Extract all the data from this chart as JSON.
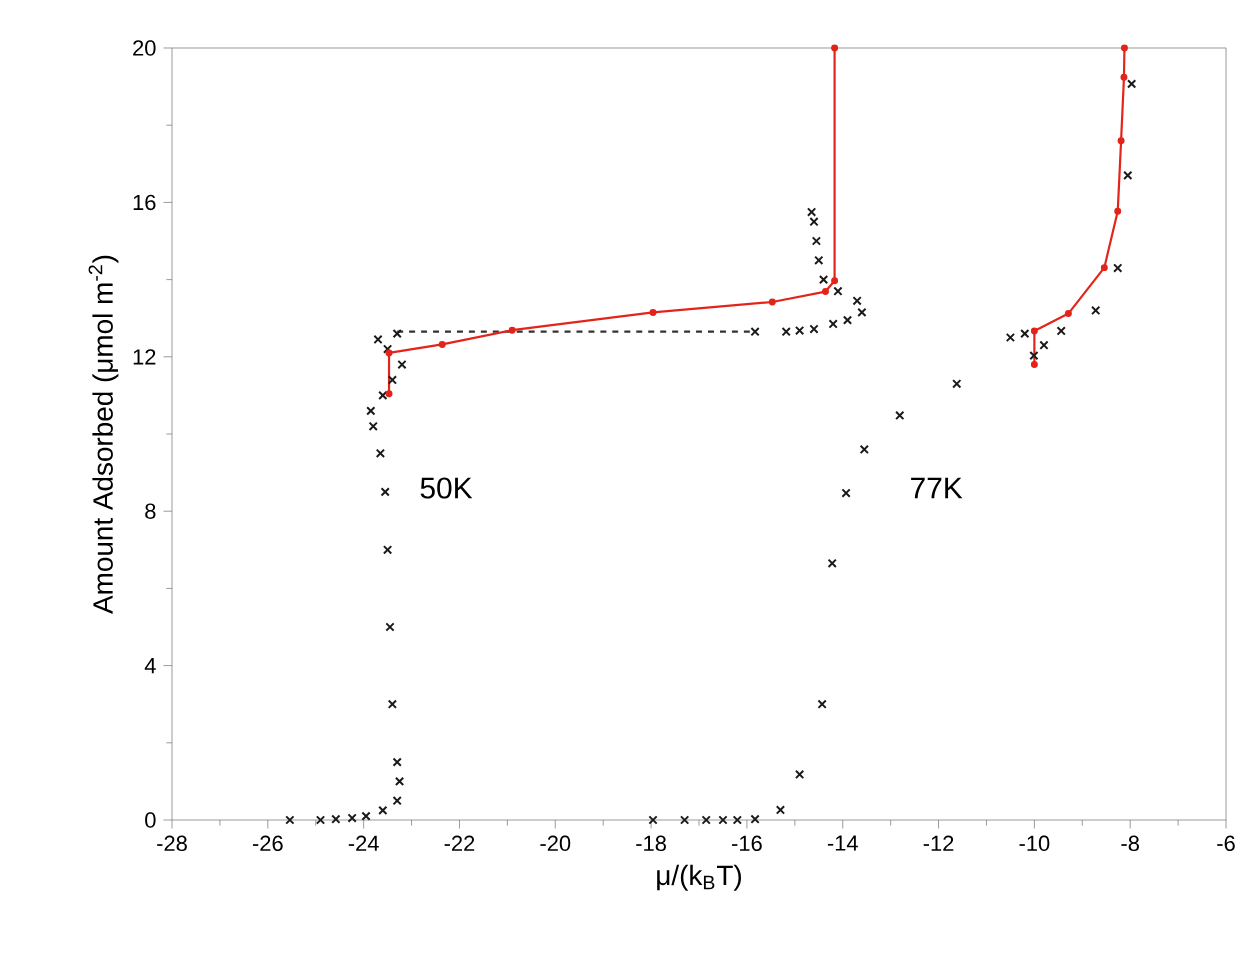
{
  "chart_data": {
    "type": "scatter",
    "xlabel": "μ/(k$_{B}$T)",
    "ylabel": "Amount Adsorbed (μmol m$^{-2}$)",
    "xlim": [
      -28,
      -6
    ],
    "ylim": [
      0,
      20
    ],
    "xticks": [
      -28,
      -26,
      -24,
      -22,
      -20,
      -18,
      -16,
      -14,
      -12,
      -10,
      -8,
      -6
    ],
    "yticks": [
      0,
      4,
      8,
      12,
      16,
      20
    ],
    "annotations": [
      "50K",
      "77K"
    ],
    "series": [
      {
        "marker": "cross",
        "color": "#1a1a1a",
        "x": [
          -25.54,
          -24.9,
          -24.58,
          -24.24,
          -23.95,
          -23.6,
          -23.3,
          -23.25,
          -23.3,
          -23.4,
          -23.45,
          -23.5,
          -23.55,
          -23.65,
          -23.8,
          -23.85,
          -23.6,
          -23.4,
          -23.2,
          -23.5,
          -23.7,
          -23.3,
          -15.83,
          -15.18,
          -14.9,
          -14.6,
          -14.2,
          -13.9,
          -13.6,
          -13.7,
          -14.1,
          -14.4,
          -14.5,
          -14.55,
          -14.6,
          -14.65
        ],
        "values": [
          0,
          0,
          0.02,
          0.05,
          0.1,
          0.25,
          0.5,
          1.0,
          1.5,
          3,
          5,
          7,
          8.5,
          9.5,
          10.2,
          10.6,
          11.0,
          11.4,
          11.8,
          12.2,
          12.45,
          12.6,
          12.65,
          12.65,
          12.68,
          12.72,
          12.85,
          12.95,
          13.15,
          13.45,
          13.7,
          14.0,
          14.5,
          15.0,
          15.5,
          15.75
        ]
      },
      {
        "type": "line",
        "line_style": "dashed",
        "marker": "none",
        "color": "#333333",
        "x": [
          -23.3,
          -15.83
        ],
        "values": [
          12.65,
          12.65
        ]
      },
      {
        "type": "line",
        "line_style": "solid",
        "marker": "circle",
        "color": "#e3241b",
        "x": [
          -23.47,
          -23.47,
          -22.36,
          -20.9,
          -17.96,
          -15.47,
          -14.36,
          -14.17,
          -14.17
        ],
        "values": [
          11.04,
          12.1,
          12.32,
          12.69,
          13.15,
          13.42,
          13.69,
          13.97,
          20
        ]
      },
      {
        "marker": "cross",
        "color": "#1a1a1a",
        "x": [
          -17.96,
          -17.3,
          -16.85,
          -16.5,
          -16.2,
          -15.83,
          -15.3,
          -14.9,
          -14.43,
          -14.22,
          -13.93,
          -13.55,
          -12.81,
          -11.62,
          -10.01,
          -10.5,
          -10.2,
          -9.8,
          -9.44,
          -8.72,
          -8.26,
          -8.05,
          -7.97
        ],
        "values": [
          0,
          0,
          0,
          0,
          0,
          0.02,
          0.26,
          1.18,
          3.0,
          6.65,
          8.47,
          9.6,
          10.48,
          11.3,
          12.03,
          12.5,
          12.6,
          12.3,
          12.67,
          13.2,
          14.3,
          16.7,
          19.07
        ]
      },
      {
        "type": "line",
        "line_style": "solid",
        "marker": "circle",
        "color": "#e3241b",
        "x": [
          -10.0,
          -10.0,
          -9.29,
          -8.54,
          -8.26,
          -8.19,
          -8.13,
          -8.12
        ],
        "values": [
          11.8,
          12.67,
          13.12,
          14.31,
          15.77,
          17.6,
          19.24,
          20
        ]
      }
    ]
  }
}
